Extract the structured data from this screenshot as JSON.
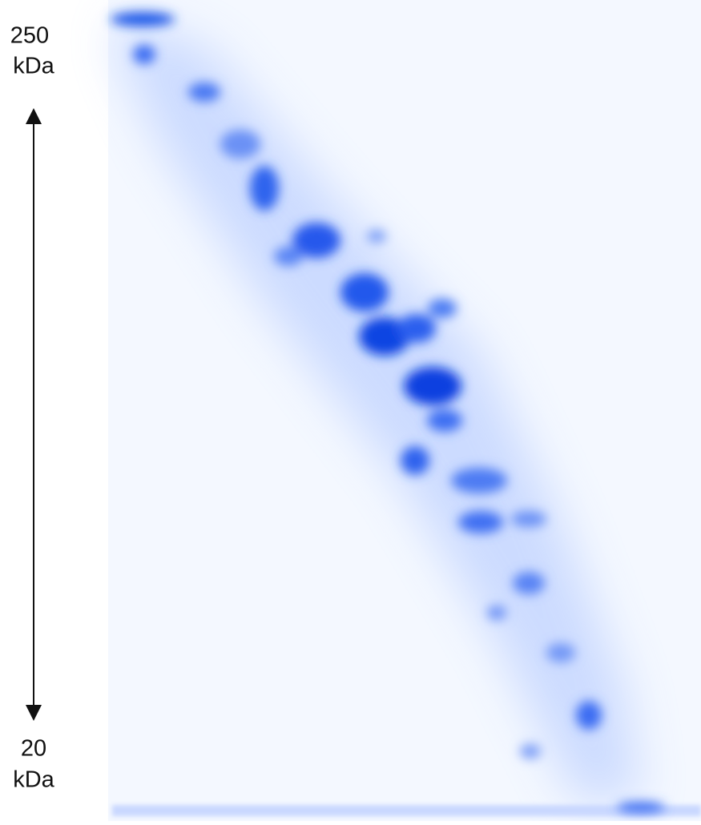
{
  "markers": {
    "top": {
      "value": "250",
      "unit": "kDa"
    },
    "bottom": {
      "value": "20",
      "unit": "kDa"
    }
  }
}
